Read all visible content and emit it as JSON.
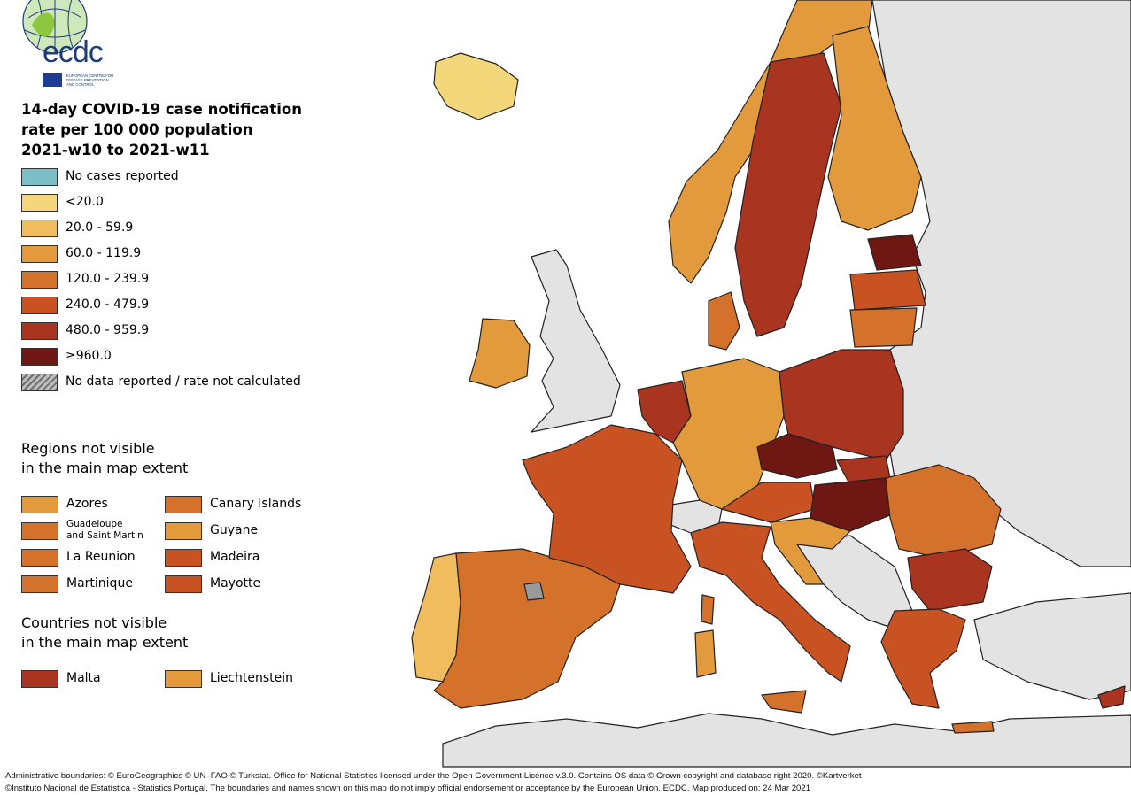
{
  "logo": {
    "name": "ecdc",
    "subtitle_lines": [
      "EUROPEAN CENTRE FOR",
      "DISEASE PREVENTION",
      "AND CONTROL"
    ]
  },
  "title": {
    "line1": "14-day COVID-19 case notification",
    "line2": "rate per 100 000 population",
    "line3": "2021-w10 to 2021-w11"
  },
  "legend": [
    {
      "label": "No cases reported",
      "color": "#7cbfc8"
    },
    {
      "label": "<20.0",
      "color": "#f4d77a"
    },
    {
      "label": "20.0 - 59.9",
      "color": "#f0bc5e"
    },
    {
      "label": "60.0 - 119.9",
      "color": "#e29a3d"
    },
    {
      "label": "120.0 - 239.9",
      "color": "#d4712a"
    },
    {
      "label": "240.0 - 479.9",
      "color": "#c95222"
    },
    {
      "label": "480.0 - 959.9",
      "color": "#a93420"
    },
    {
      "label": "≥960.0",
      "color": "#6f1713"
    },
    {
      "label": "No data reported / rate not calculated",
      "color": "hatch"
    }
  ],
  "regions_section": {
    "title_line1": "Regions not visible",
    "title_line2": "in the main map extent",
    "items": [
      {
        "label": "Azores",
        "color": "#e29a3d"
      },
      {
        "label": "Canary Islands",
        "color": "#d4712a"
      },
      {
        "label_line1": "Guadeloupe",
        "label_line2": "and Saint Martin",
        "color": "#d4712a"
      },
      {
        "label": "Guyane",
        "color": "#e29a3d"
      },
      {
        "label": "La Reunion",
        "color": "#d4712a"
      },
      {
        "label": "Madeira",
        "color": "#c95222"
      },
      {
        "label": "Martinique",
        "color": "#d4712a"
      },
      {
        "label": "Mayotte",
        "color": "#c95222"
      }
    ]
  },
  "countries_section": {
    "title_line1": "Countries not visible",
    "title_line2": "in the main map extent",
    "items": [
      {
        "label": "Malta",
        "color": "#a93420"
      },
      {
        "label": "Liechtenstein",
        "color": "#e29a3d"
      }
    ]
  },
  "credits": {
    "line1": "Administrative boundaries: © EuroGeographics © UN–FAO © Turkstat. Office for National Statistics licensed under the Open Government Licence v.3.0. Contains OS data © Crown copyright and database right 2020. ©Kartverket",
    "line2": "©Instituto Nacional de Estatística - Statistics Portugal. The boundaries and names shown on this map do not imply official endorsement or acceptance by the European Union. ECDC. Map produced on: 24 Mar 2021"
  },
  "map_colors": {
    "sea": "#ffffff",
    "non_eu": "#e3e3e3",
    "border": "#6b6b6b"
  }
}
